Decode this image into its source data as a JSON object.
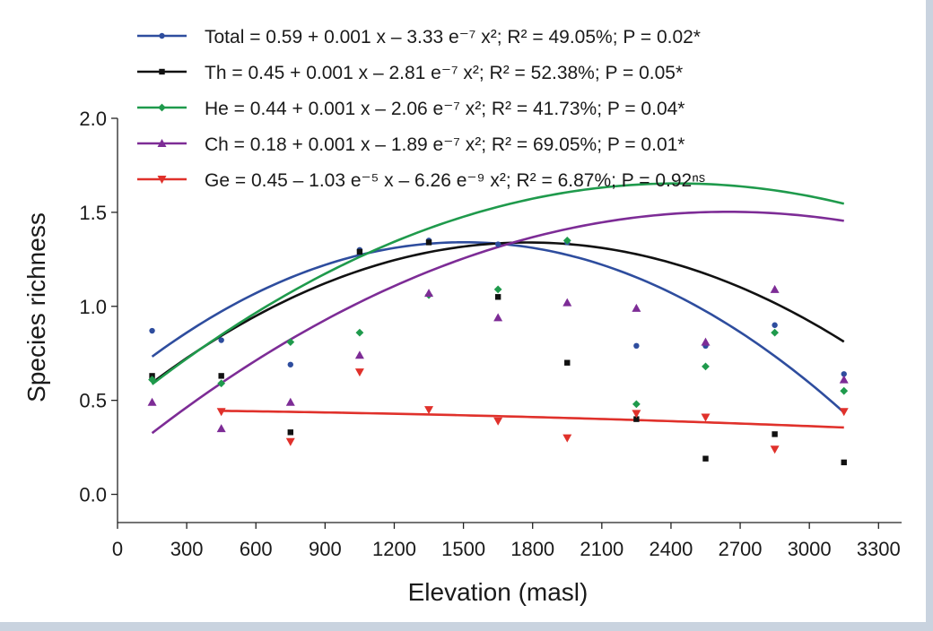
{
  "chart_data": {
    "type": "scatter",
    "title": "",
    "xlabel": "Elevation (masl)",
    "ylabel": "Species richness",
    "xlim": [
      0,
      3400
    ],
    "ylim": [
      -0.15,
      2.0
    ],
    "xticks": [
      0,
      300,
      600,
      900,
      1200,
      1500,
      1800,
      2100,
      2400,
      2700,
      3000,
      3300
    ],
    "yticks": [
      0.0,
      0.5,
      1.0,
      1.5,
      2.0
    ],
    "ytick_labels": [
      "0.0",
      "0.5",
      "1.0",
      "1.5",
      "2.0"
    ],
    "grid": false,
    "legend_position": "top",
    "series": [
      {
        "name": "Total",
        "legend_label": "Total = 0.59 + 0.001 x – 3.33 e⁻⁷ x²; R² = 49.05%; P = 0.02*",
        "color": "#2e4d9e",
        "marker": "circle",
        "points": [
          [
            150,
            0.87
          ],
          [
            450,
            0.82
          ],
          [
            750,
            0.69
          ],
          [
            1050,
            1.3
          ],
          [
            1350,
            1.35
          ],
          [
            1650,
            1.33
          ],
          [
            1950,
            1.34
          ],
          [
            2250,
            0.79
          ],
          [
            2550,
            0.79
          ],
          [
            2850,
            0.9
          ],
          [
            3150,
            0.64
          ]
        ],
        "fit_x": [
          150,
          3150
        ],
        "fit": [
          0.59,
          0.001,
          -3.33e-07
        ]
      },
      {
        "name": "Th",
        "legend_label": "Th = 0.45 + 0.001 x – 2.81 e⁻⁷ x²; R² = 52.38%; P = 0.05*",
        "color": "#111111",
        "marker": "square",
        "points": [
          [
            150,
            0.63
          ],
          [
            450,
            0.63
          ],
          [
            750,
            0.33
          ],
          [
            1050,
            1.29
          ],
          [
            1350,
            1.34
          ],
          [
            1650,
            1.05
          ],
          [
            1950,
            0.7
          ],
          [
            2250,
            0.4
          ],
          [
            2550,
            0.19
          ],
          [
            2850,
            0.32
          ],
          [
            3150,
            0.17
          ]
        ],
        "fit_x": [
          150,
          3150
        ],
        "fit": [
          0.45,
          0.001,
          -2.81e-07
        ]
      },
      {
        "name": "He",
        "legend_label": "He = 0.44 + 0.001 x – 2.06 e⁻⁷ x²; R² = 41.73%; P = 0.04*",
        "color": "#1f9a4c",
        "marker": "diamond",
        "points": [
          [
            150,
            0.61
          ],
          [
            450,
            0.59
          ],
          [
            750,
            0.81
          ],
          [
            1050,
            0.86
          ],
          [
            1350,
            1.06
          ],
          [
            1650,
            1.09
          ],
          [
            1950,
            1.35
          ],
          [
            2250,
            0.48
          ],
          [
            2550,
            0.68
          ],
          [
            2850,
            0.86
          ],
          [
            3150,
            0.55
          ]
        ],
        "fit_x": [
          150,
          3150
        ],
        "fit": [
          0.44,
          0.001,
          -2.06e-07
        ]
      },
      {
        "name": "Ch",
        "legend_label": "Ch = 0.18 + 0.001 x – 1.89 e⁻⁷ x²; R² = 69.05%; P = 0.01*",
        "color": "#7d2c96",
        "marker": "triangle-up",
        "points": [
          [
            150,
            0.49
          ],
          [
            450,
            0.35
          ],
          [
            750,
            0.49
          ],
          [
            1050,
            0.74
          ],
          [
            1350,
            1.07
          ],
          [
            1650,
            0.94
          ],
          [
            1950,
            1.02
          ],
          [
            2250,
            0.99
          ],
          [
            2550,
            0.81
          ],
          [
            2850,
            1.09
          ],
          [
            3150,
            0.61
          ]
        ],
        "fit_x": [
          150,
          3150
        ],
        "fit": [
          0.18,
          0.001,
          -1.89e-07
        ]
      },
      {
        "name": "Ge",
        "legend_label": "Ge = 0.45 – 1.03 e⁻⁵ x – 6.26 e⁻⁹ x²; R² = 6.87%; P = 0.92ⁿˢ",
        "color": "#e0312b",
        "marker": "triangle-down",
        "points": [
          [
            450,
            0.44
          ],
          [
            750,
            0.28
          ],
          [
            1050,
            0.65
          ],
          [
            1350,
            0.45
          ],
          [
            1650,
            0.39
          ],
          [
            1950,
            0.3
          ],
          [
            2250,
            0.43
          ],
          [
            2550,
            0.41
          ],
          [
            2850,
            0.24
          ],
          [
            3150,
            0.44
          ]
        ],
        "fit_x": [
          450,
          3150
        ],
        "fit": [
          0.45,
          -1.03e-05,
          -6.26e-09
        ]
      }
    ]
  }
}
